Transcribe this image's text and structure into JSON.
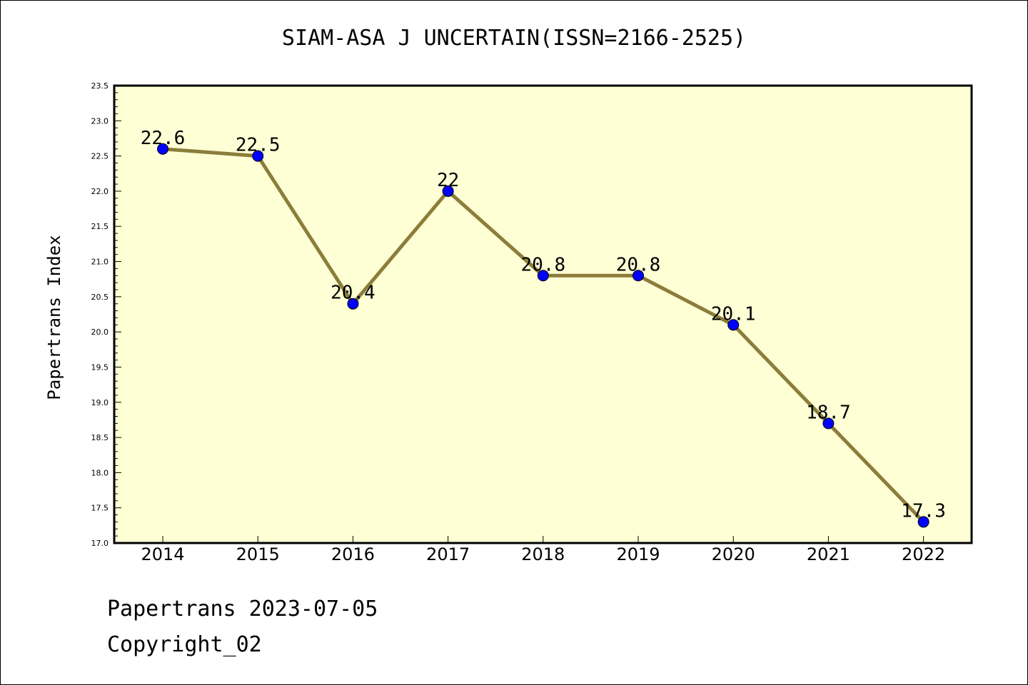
{
  "title": "SIAM-ASA J UNCERTAIN(ISSN=2166-2525)",
  "footer": {
    "line1": "Papertrans 2023-07-05",
    "line2": "Copyright_02"
  },
  "colors": {
    "plot_background": "#ffffd5",
    "line": "#8b7d3a",
    "marker": "#0000ff"
  },
  "chart_data": {
    "type": "line",
    "title": "SIAM-ASA J UNCERTAIN(ISSN=2166-2525)",
    "xlabel": "",
    "ylabel": "Papertrans Index",
    "categories": [
      "2014",
      "2015",
      "2016",
      "2017",
      "2018",
      "2019",
      "2020",
      "2021",
      "2022"
    ],
    "series": [
      {
        "values": [
          22.6,
          22.5,
          20.4,
          22,
          20.8,
          20.8,
          20.1,
          18.7,
          17.3
        ],
        "labels": [
          "22.6",
          "22.5",
          "20.4",
          "22",
          "20.8",
          "20.8",
          "20.1",
          "18.7",
          "17.3"
        ]
      }
    ],
    "ylim": [
      17.0,
      23.5
    ],
    "yticks": [
      "17.0",
      "17.5",
      "18.0",
      "18.5",
      "19.0",
      "19.5",
      "20.0",
      "20.5",
      "21.0",
      "21.5",
      "22.0",
      "22.5",
      "23.0",
      "23.5"
    ],
    "grid": false,
    "legend": "none"
  }
}
